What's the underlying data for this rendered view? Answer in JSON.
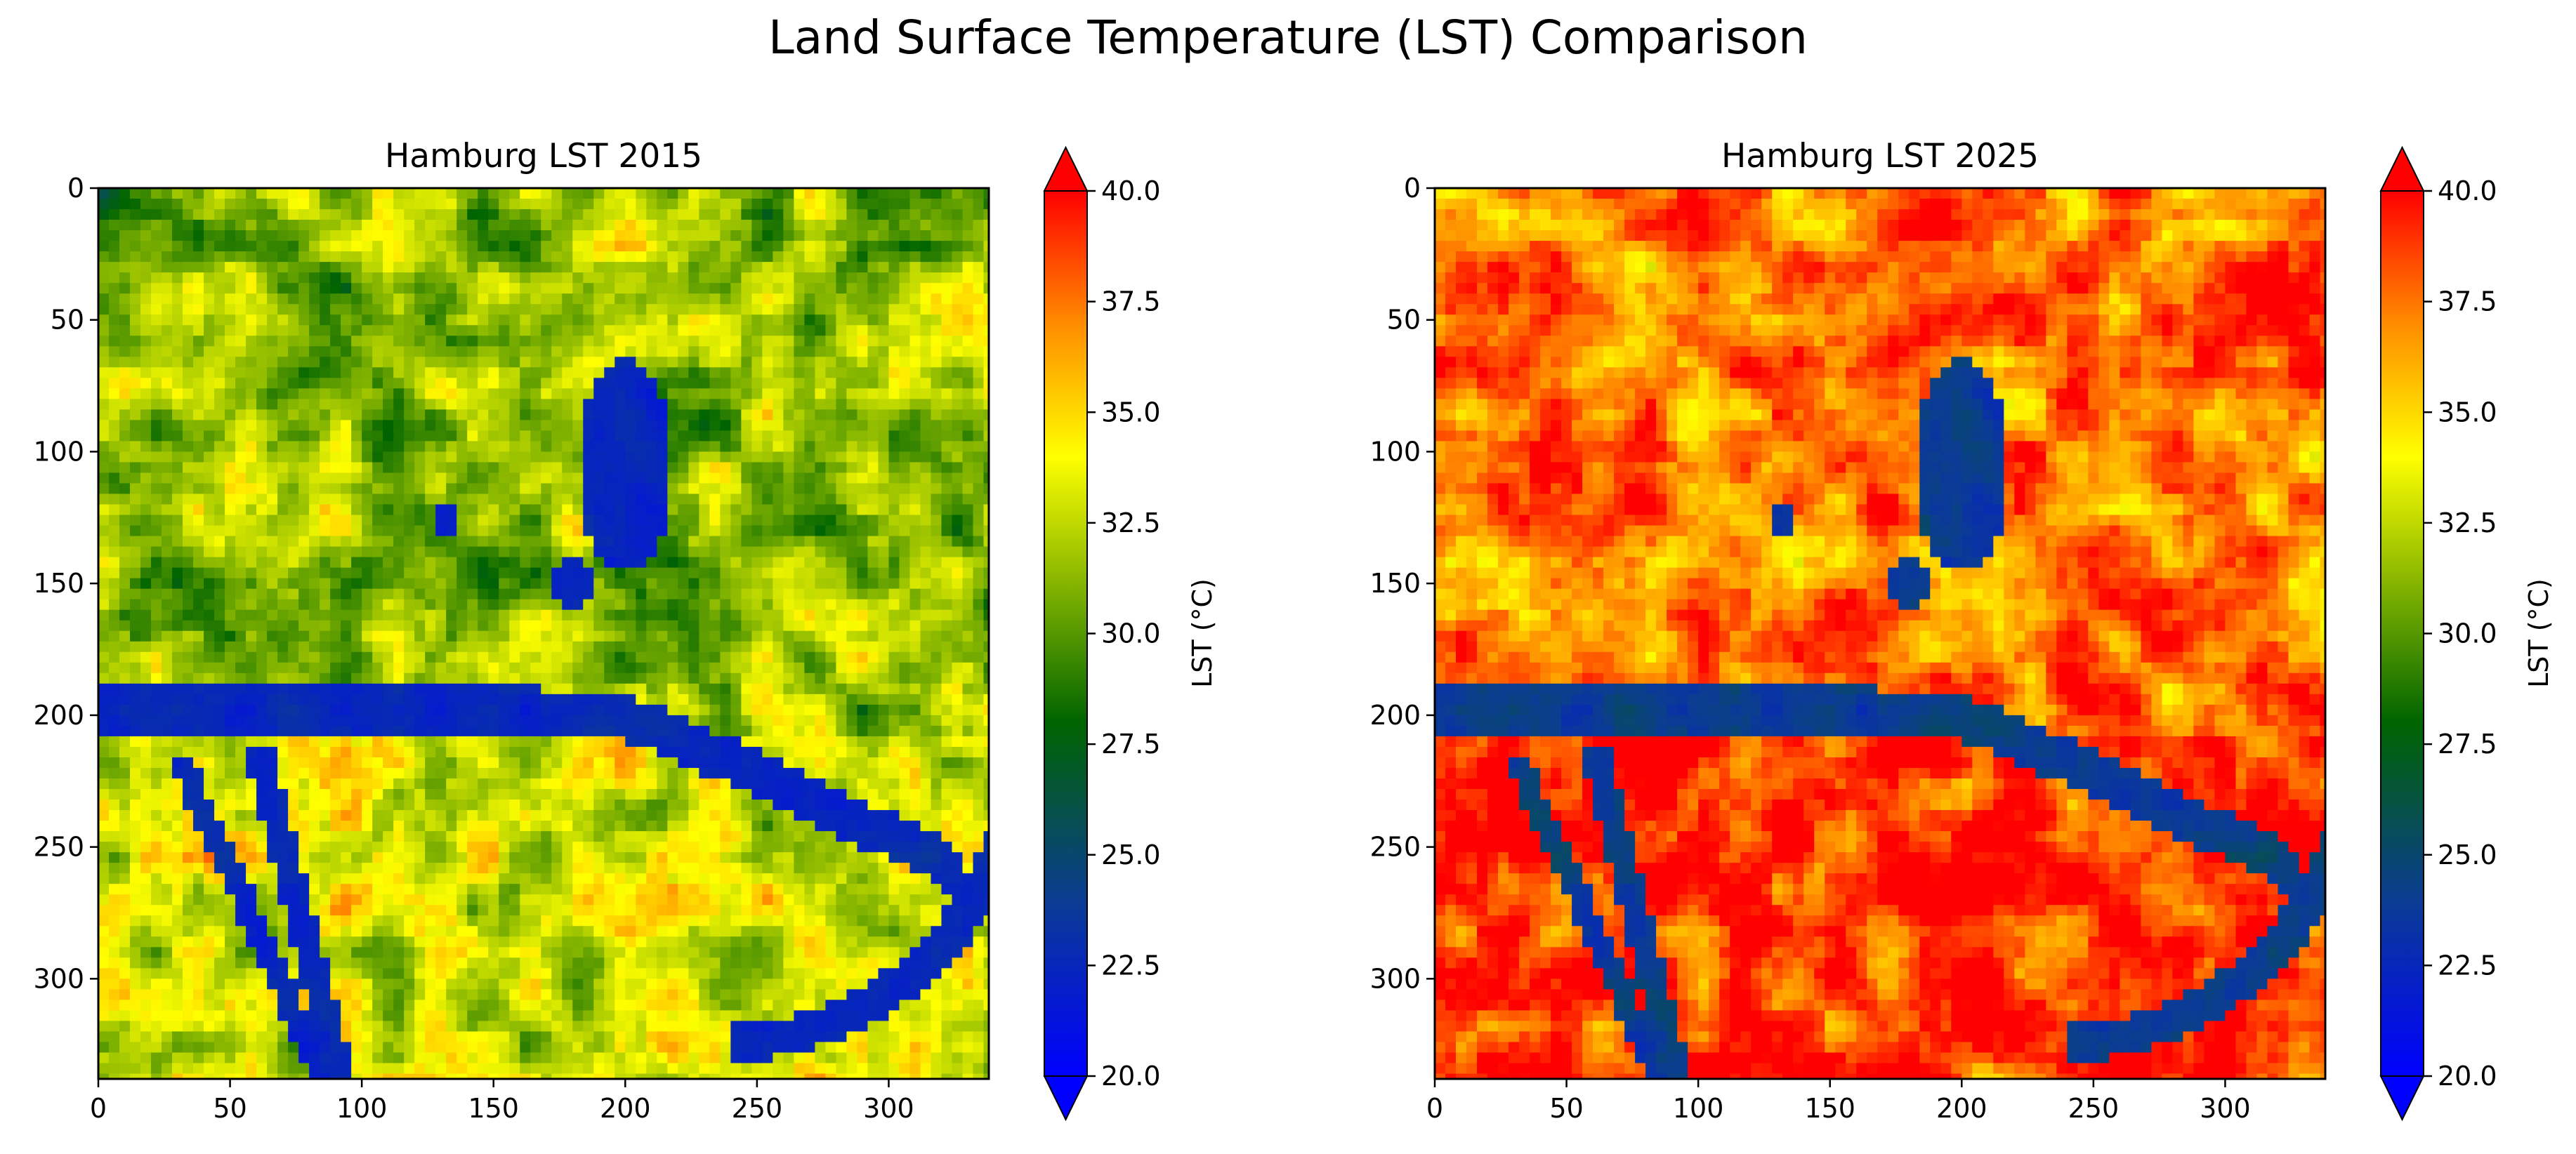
{
  "suptitle": "Land Surface Temperature (LST) Comparison",
  "chart_data": [
    {
      "type": "heatmap",
      "title": "Hamburg LST 2015",
      "x_ticks": [
        0,
        50,
        100,
        150,
        200,
        250,
        300
      ],
      "y_ticks": [
        0,
        50,
        100,
        150,
        200,
        250,
        300
      ],
      "xlim": [
        0,
        338
      ],
      "ylim": [
        338,
        0
      ],
      "colorbar": {
        "label": "LST (°C)",
        "range": [
          20.0,
          40.0
        ],
        "ticks": [
          "20.0",
          "22.5",
          "25.0",
          "27.5",
          "30.0",
          "32.5",
          "35.0",
          "37.5",
          "40.0"
        ],
        "extend": "both",
        "colormap": [
          "#0000ff",
          "#0b3d91",
          "#006400",
          "#ffff00",
          "#ff8c00",
          "#ff0000"
        ]
      },
      "warm_bias": 0
    },
    {
      "type": "heatmap",
      "title": "Hamburg LST 2025",
      "x_ticks": [
        0,
        50,
        100,
        150,
        200,
        250,
        300
      ],
      "y_ticks": [
        0,
        50,
        100,
        150,
        200,
        250,
        300
      ],
      "xlim": [
        0,
        338
      ],
      "ylim": [
        338,
        0
      ],
      "colorbar": {
        "label": "LST (°C)",
        "range": [
          20.0,
          40.0
        ],
        "ticks": [
          "20.0",
          "22.5",
          "25.0",
          "27.5",
          "30.0",
          "32.5",
          "35.0",
          "37.5",
          "40.0"
        ],
        "extend": "both",
        "colormap": [
          "#0000ff",
          "#0b3d91",
          "#006400",
          "#ffff00",
          "#ff8c00",
          "#ff0000"
        ]
      },
      "warm_bias": 6
    }
  ]
}
